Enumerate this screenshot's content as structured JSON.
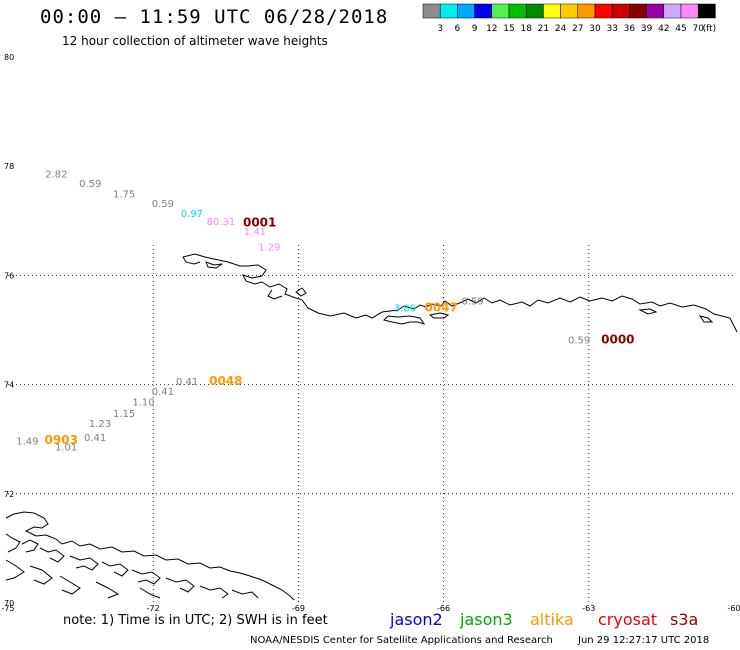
{
  "header": {
    "title": "00:00 – 11:59 UTC 06/28/2018",
    "subtitle": "12 hour collection of altimeter wave heights"
  },
  "colorbar": {
    "colors": [
      "#8c8c8c",
      "#00eeee",
      "#00a8ff",
      "#0000ee",
      "#55ee55",
      "#00c000",
      "#008800",
      "#ffff00",
      "#ffcc00",
      "#ff9900",
      "#ff0000",
      "#cc0000",
      "#880000",
      "#9900aa",
      "#ccaaff",
      "#ff88ff",
      "#000000"
    ],
    "labels": [
      "3",
      "6",
      "9",
      "12",
      "15",
      "18",
      "21",
      "24",
      "27",
      "30",
      "33",
      "36",
      "39",
      "42",
      "45",
      "70"
    ],
    "unit": "(ft)"
  },
  "map": {
    "lon_ticks": [
      "-75",
      "-72",
      "-69",
      "-66",
      "-63",
      "-60"
    ],
    "lat_ticks": [
      "80",
      "78",
      "76",
      "74",
      "72",
      "70"
    ],
    "labels": [
      {
        "text": "2.82",
        "color": "#808080",
        "lon": -74.0,
        "lat": 77.79
      },
      {
        "text": "0.59",
        "color": "#808080",
        "lon": -73.3,
        "lat": 77.62
      },
      {
        "text": "1.75",
        "color": "#808080",
        "lon": -72.6,
        "lat": 77.43
      },
      {
        "text": "0.59",
        "color": "#808080",
        "lon": -71.8,
        "lat": 77.25
      },
      {
        "text": "0.97",
        "color": "#00e0e0",
        "lon": -71.2,
        "lat": 77.07
      },
      {
        "text": "80.31",
        "color": "#ff88ff",
        "lon": -70.6,
        "lat": 76.92
      },
      {
        "text": "0001",
        "color": "#880000",
        "lon": -69.8,
        "lat": 76.9,
        "bold": true
      },
      {
        "text": "1.41",
        "color": "#ff88ff",
        "lon": -69.9,
        "lat": 76.74
      },
      {
        "text": "1.29",
        "color": "#ff88ff",
        "lon": -69.6,
        "lat": 76.46
      },
      {
        "text": "3.86",
        "color": "#00e0e0",
        "lon": -66.8,
        "lat": 75.34
      },
      {
        "text": "0047",
        "color": "#ff9900",
        "lon": -66.05,
        "lat": 75.34,
        "bold": true
      },
      {
        "text": "0.59",
        "color": "#808080",
        "lon": -65.4,
        "lat": 75.47
      },
      {
        "text": "0.59",
        "color": "#808080",
        "lon": -63.2,
        "lat": 74.75
      },
      {
        "text": "0000",
        "color": "#880000",
        "lon": -62.4,
        "lat": 74.75,
        "bold": true
      },
      {
        "text": "0.41",
        "color": "#808080",
        "lon": -71.3,
        "lat": 73.99
      },
      {
        "text": "0048",
        "color": "#ff9900",
        "lon": -70.5,
        "lat": 73.99,
        "bold": true
      },
      {
        "text": "0.41",
        "color": "#808080",
        "lon": -71.8,
        "lat": 73.81
      },
      {
        "text": "1.10",
        "color": "#808080",
        "lon": -72.2,
        "lat": 73.62
      },
      {
        "text": "1.15",
        "color": "#808080",
        "lon": -72.6,
        "lat": 73.41
      },
      {
        "text": "1.23",
        "color": "#808080",
        "lon": -73.1,
        "lat": 73.22
      },
      {
        "text": "1.49",
        "color": "#808080",
        "lon": -74.6,
        "lat": 72.9
      },
      {
        "text": "0903",
        "color": "#ff9900",
        "lon": -73.9,
        "lat": 72.91,
        "bold": true
      },
      {
        "text": "0.41",
        "color": "#808080",
        "lon": -73.2,
        "lat": 72.97
      },
      {
        "text": "1.01",
        "color": "#808080",
        "lon": -73.8,
        "lat": 72.79
      }
    ]
  },
  "footer": {
    "note": "note: 1) Time is in UTC; 2) SWH is in feet",
    "satellites": [
      {
        "name": "jason2",
        "color": "#0000ee"
      },
      {
        "name": "jason3",
        "color": "#00aa00"
      },
      {
        "name": "altika",
        "color": "#ff9900"
      },
      {
        "name": "cryosat",
        "color": "#ee0000"
      },
      {
        "name": "s3a",
        "color": "#990000"
      }
    ],
    "credit": "NOAA/NESDIS Center for Satellite Applications and Research",
    "timestamp": "Jun 29 12:27:17 UTC 2018"
  }
}
